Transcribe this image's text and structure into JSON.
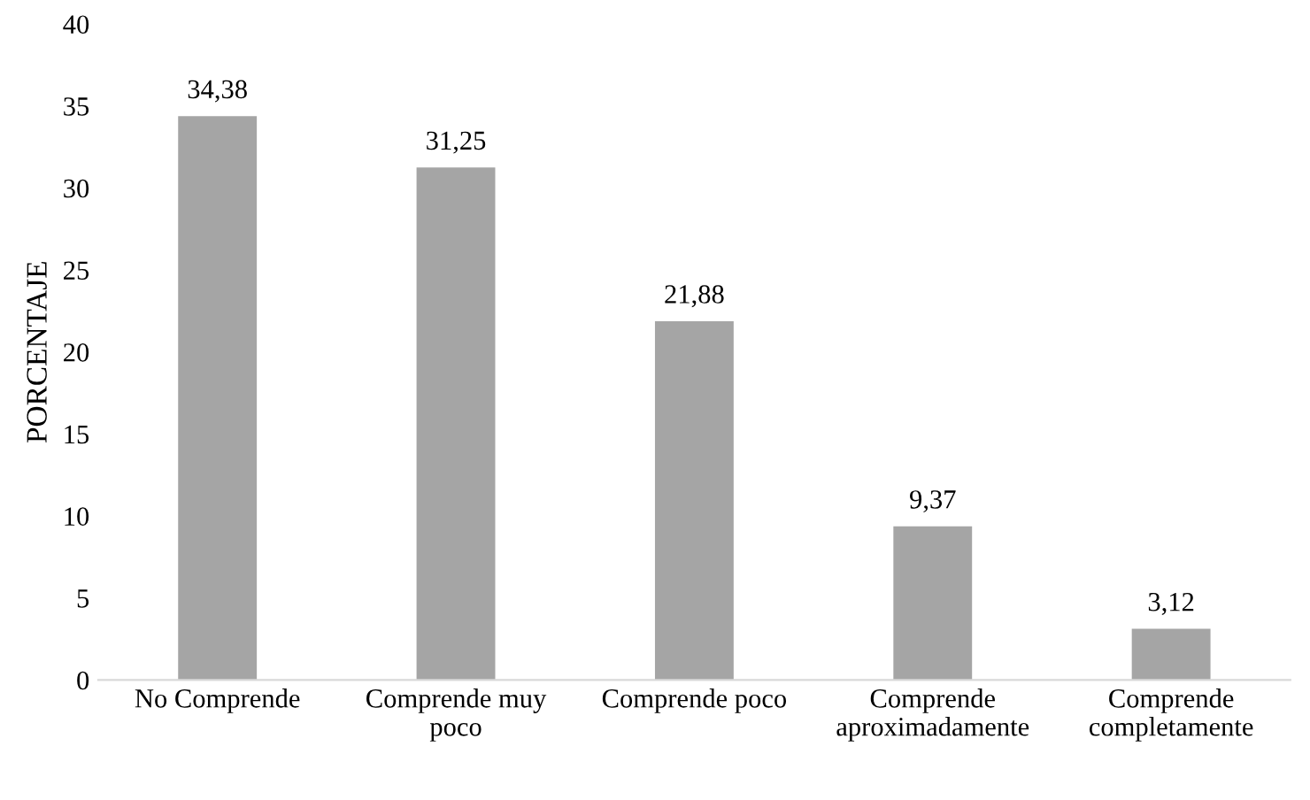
{
  "chart_data": {
    "type": "bar",
    "ylabel": "PORCENTAJE",
    "categories": [
      "No Comprende",
      "Comprende muy\npoco",
      "Comprende poco",
      "Comprende\naproximadamente",
      "Comprende\ncompletamente"
    ],
    "values": [
      34.38,
      31.25,
      21.88,
      9.37,
      3.12
    ],
    "value_labels": [
      "34,38",
      "31,25",
      "21,88",
      "9,37",
      "3,12"
    ],
    "color": "#a5a5a5",
    "ylim": [
      0,
      40
    ],
    "yticks": [
      0,
      5,
      10,
      15,
      20,
      25,
      30,
      35,
      40
    ],
    "grid": false,
    "legend": false
  }
}
